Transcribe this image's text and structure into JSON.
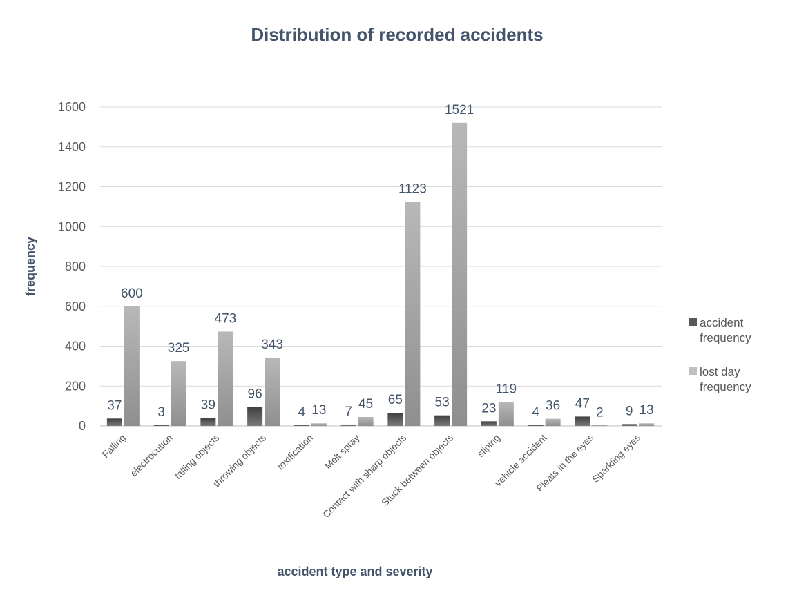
{
  "chart_data": {
    "type": "bar",
    "title": "Distribution of recorded accidents",
    "xlabel": "accident type and severity",
    "ylabel": "frequency",
    "ylim": [
      0,
      1600
    ],
    "yticks": [
      0,
      200,
      400,
      600,
      800,
      1000,
      1200,
      1400,
      1600
    ],
    "grid": true,
    "legend_position": "right",
    "categories": [
      "Falling",
      "electrocution",
      "falling objects",
      "throwing objects",
      "toxification",
      "Melt spray",
      "Contact with sharp objects",
      "Stuck between objects",
      "sliping",
      "vehicle accident",
      "Pleats in the eyes",
      "Sparkling eyes"
    ],
    "series": [
      {
        "name": "accident frequency",
        "color": "#595959",
        "values": [
          37,
          3,
          39,
          96,
          4,
          7,
          65,
          53,
          23,
          4,
          47,
          9
        ]
      },
      {
        "name": "lost day frequency",
        "color": "#bfbfbf",
        "values": [
          600,
          325,
          473,
          343,
          13,
          45,
          1123,
          1521,
          119,
          36,
          2,
          13
        ]
      }
    ]
  }
}
